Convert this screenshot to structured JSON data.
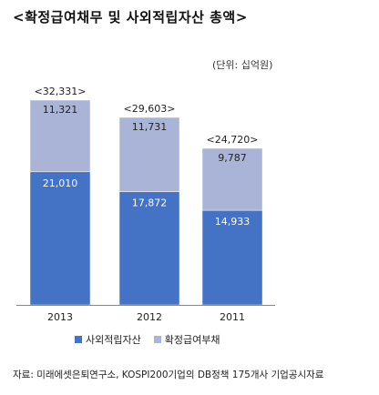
{
  "title": "<확정급여채무 및 사외적립자산 총액>",
  "unit_note": "(단위: 십억원)",
  "source_note": "자료: 미래에셋은퇴연구소, KOSPI200기업의 DB정책 175개사 기업공시자료",
  "colors": {
    "plan_assets": "#4472c4",
    "obligation": "#a9b4d6",
    "axis": "#888888"
  },
  "chart_data": {
    "type": "bar",
    "stacked": true,
    "categories": [
      "2013",
      "2012",
      "2011"
    ],
    "series": [
      {
        "name": "사외적립자산",
        "values": [
          21010,
          17872,
          14933
        ]
      },
      {
        "name": "확정급여부채",
        "values": [
          11321,
          11731,
          9787
        ]
      }
    ],
    "total_labels": [
      "<32,331>",
      "<29,603>",
      "<24,720>"
    ],
    "value_labels": [
      [
        "21,010",
        "17,872",
        "14,933"
      ],
      [
        "11,321",
        "11,731",
        "9,787"
      ]
    ],
    "ylim": [
      0,
      32331
    ],
    "legend": "bottom",
    "grid": false
  }
}
